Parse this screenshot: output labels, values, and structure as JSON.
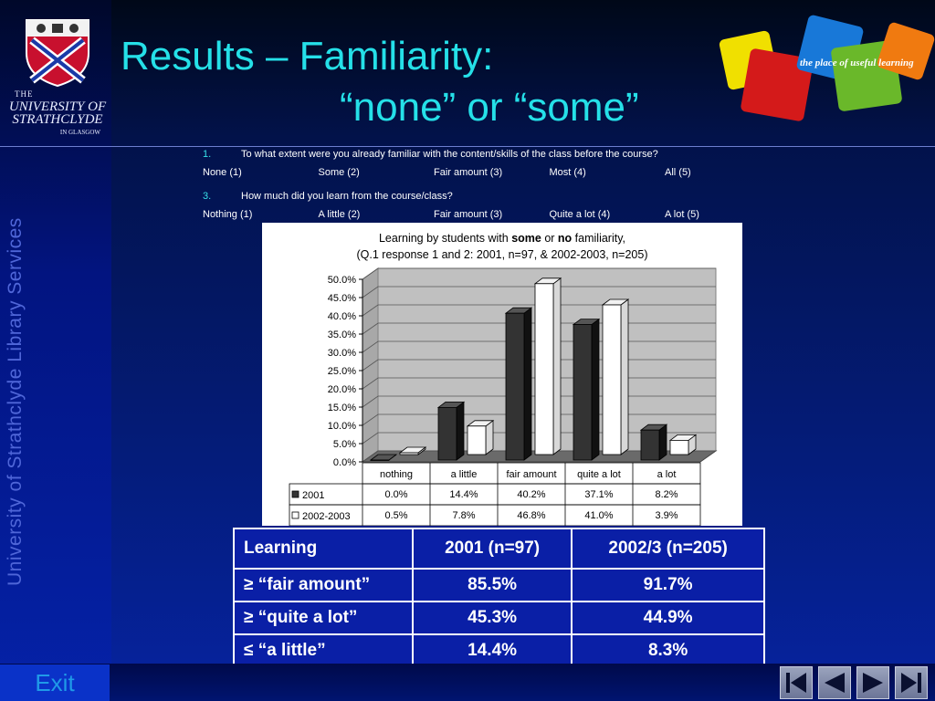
{
  "sidebar": {
    "uni_line1": "THE",
    "uni_line2": "UNIVERSITY OF STRATHCLYDE",
    "uni_line3": "IN GLASGOW",
    "vertical_text": "University of Strathclyde Library Services"
  },
  "header": {
    "title_line1": "Results – Familiarity:",
    "title_line2": "“none” or “some”",
    "brand_tagline": "the place of useful learning"
  },
  "questions": [
    {
      "number": "1.",
      "text": "To what extent were you already familiar with the content/skills of the class before the course?",
      "options": [
        "None (1)",
        "Some (2)",
        "Fair amount (3)",
        "Most (4)",
        "All (5)"
      ]
    },
    {
      "number": "3.",
      "text": "How much did you learn from the course/class?",
      "options": [
        "Nothing (1)",
        "A little (2)",
        "Fair amount (3)",
        "Quite a lot (4)",
        "A lot (5)"
      ]
    }
  ],
  "chart_data": {
    "type": "bar",
    "title_line1_pre": "Learning by students with ",
    "title_bold1": "some",
    "title_mid": " or ",
    "title_bold2": "no",
    "title_line1_post": " familiarity,",
    "title_line2": "(Q.1 response 1 and 2: 2001, n=97, & 2002-2003, n=205)",
    "categories": [
      "nothing",
      "a little",
      "fair amount",
      "quite a lot",
      "a lot"
    ],
    "series": [
      {
        "name": "2001",
        "values": [
          0.0,
          14.4,
          40.2,
          37.1,
          8.2
        ],
        "labels": [
          "0.0%",
          "14.4%",
          "40.2%",
          "37.1%",
          "8.2%"
        ],
        "color": "#333333"
      },
      {
        "name": "2002-2003",
        "values": [
          0.5,
          7.8,
          46.8,
          41.0,
          3.9
        ],
        "labels": [
          "0.5%",
          "7.8%",
          "46.8%",
          "41.0%",
          "3.9%"
        ],
        "color": "#ffffff"
      }
    ],
    "ylim": [
      0,
      50
    ],
    "yticks": [
      "0.0%",
      "5.0%",
      "10.0%",
      "15.0%",
      "20.0%",
      "25.0%",
      "30.0%",
      "35.0%",
      "40.0%",
      "45.0%",
      "50.0%"
    ],
    "grid": true,
    "legend": "data-table"
  },
  "results_table": {
    "headers": [
      "Learning",
      "2001 (n=97)",
      "2002/3 (n=205)"
    ],
    "rows": [
      [
        "≥ “fair amount”",
        "85.5%",
        "91.7%"
      ],
      [
        "≥ “quite a lot”",
        "45.3%",
        "44.9%"
      ],
      [
        "≤ “a little”",
        "14.4%",
        "8.3%"
      ]
    ]
  },
  "footer": {
    "exit_label": "Exit",
    "nav": [
      "first-icon",
      "previous-icon",
      "next-icon",
      "last-icon"
    ]
  },
  "colors": {
    "title": "#25e0e8",
    "background": "#041c7a",
    "series_2001": "#333333",
    "series_2002": "#ffffff"
  }
}
